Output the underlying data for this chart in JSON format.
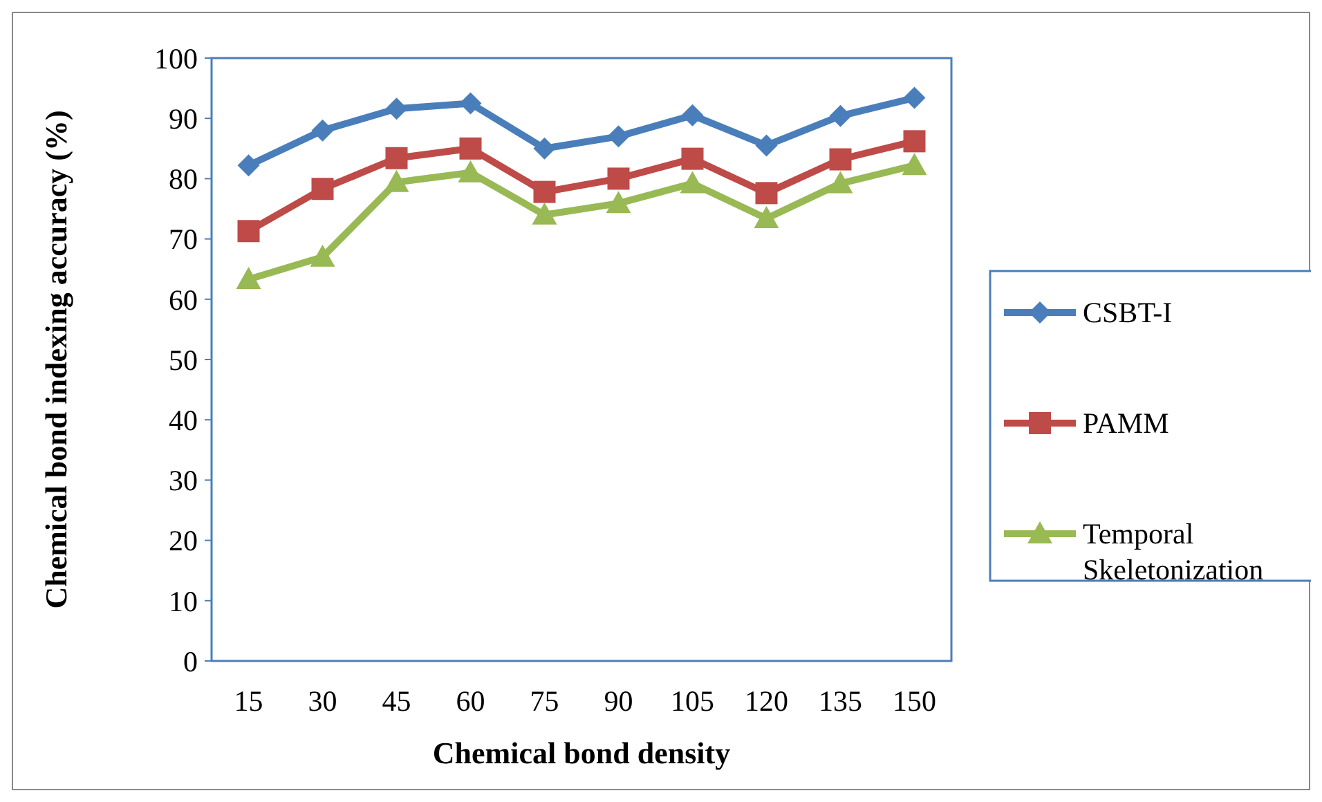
{
  "chart_data": {
    "type": "line",
    "xlabel": "Chemical bond density",
    "ylabel": "Chemical bond indexing accuracy (%)",
    "categories": [
      "15",
      "30",
      "45",
      "60",
      "75",
      "90",
      "105",
      "120",
      "135",
      "150"
    ],
    "ylim": [
      0,
      100
    ],
    "yticks": [
      0,
      10,
      20,
      30,
      40,
      50,
      60,
      70,
      80,
      90,
      100
    ],
    "grid": false,
    "legend": "right",
    "series": [
      {
        "name": "CSBT-I",
        "color": "#4a7ebb",
        "marker": "diamond",
        "values": [
          82.2,
          88,
          91.6,
          92.5,
          85,
          87,
          90.5,
          85.5,
          90.4,
          93.4
        ]
      },
      {
        "name": "PAMM",
        "color": "#be4b48",
        "marker": "square",
        "values": [
          71.3,
          78.3,
          83.4,
          85,
          77.8,
          80,
          83.3,
          77.6,
          83.2,
          86.2
        ]
      },
      {
        "name": "Temporal Skeletonization",
        "color": "#98b954",
        "marker": "triangle",
        "values": [
          63.3,
          67,
          79.4,
          81,
          74,
          75.9,
          79.2,
          73.4,
          79.2,
          82.2
        ]
      }
    ]
  }
}
